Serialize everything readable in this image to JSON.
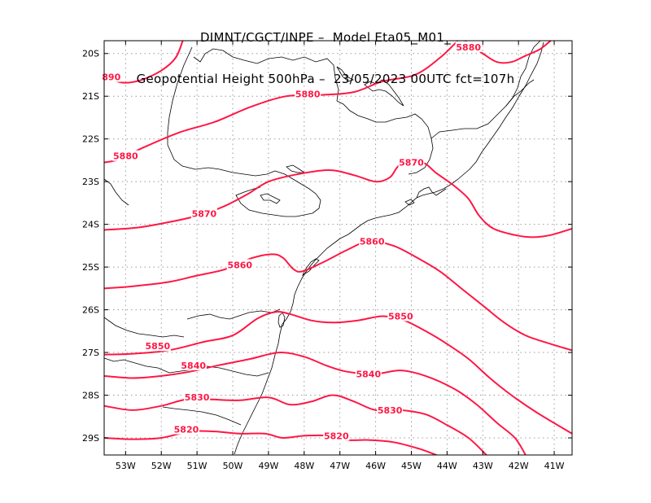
{
  "title": {
    "line1": "DIMNT/CGCT/INPE –  Model Eta05_M01_",
    "line2": "Geopotential Height 500hPa –  23/05/2023 00UTC fct=107h"
  },
  "map": {
    "lon_range": [
      -53.6,
      -40.5
    ],
    "lat_range": [
      -29.4,
      -19.7
    ],
    "contour_color": "#ff1744",
    "coast_color": "#000000",
    "grid_color": "#9a9a9a",
    "lon_ticks": [
      {
        "value": -53,
        "label": "53W"
      },
      {
        "value": -52,
        "label": "52W"
      },
      {
        "value": -51,
        "label": "51W"
      },
      {
        "value": -50,
        "label": "50W"
      },
      {
        "value": -49,
        "label": "49W"
      },
      {
        "value": -48,
        "label": "48W"
      },
      {
        "value": -47,
        "label": "47W"
      },
      {
        "value": -46,
        "label": "46W"
      },
      {
        "value": -45,
        "label": "45W"
      },
      {
        "value": -44,
        "label": "44W"
      },
      {
        "value": -43,
        "label": "43W"
      },
      {
        "value": -42,
        "label": "42W"
      },
      {
        "value": -41,
        "label": "41W"
      }
    ],
    "lat_ticks": [
      {
        "value": -20,
        "label": "20S"
      },
      {
        "value": -21,
        "label": "21S"
      },
      {
        "value": -22,
        "label": "22S"
      },
      {
        "value": -23,
        "label": "23S"
      },
      {
        "value": -24,
        "label": "24S"
      },
      {
        "value": -25,
        "label": "25S"
      },
      {
        "value": -26,
        "label": "26S"
      },
      {
        "value": -27,
        "label": "27S"
      },
      {
        "value": -28,
        "label": "28S"
      },
      {
        "value": -29,
        "label": "29S"
      }
    ],
    "contours": [
      {
        "level": 5890,
        "points": [
          [
            -53.6,
            -20.53
          ],
          [
            -53.1,
            -20.68
          ],
          [
            -52.6,
            -20.63
          ],
          [
            -52.0,
            -20.4
          ],
          [
            -51.6,
            -20.1
          ],
          [
            -51.4,
            -19.7
          ]
        ],
        "labels": [
          {
            "text": "890",
            "lon": -53.4,
            "lat": -20.55
          }
        ]
      },
      {
        "level": 5880,
        "points": [
          [
            -43.5,
            -19.7
          ],
          [
            -43.0,
            -20.0
          ],
          [
            -42.6,
            -20.2
          ],
          [
            -42.2,
            -20.2
          ],
          [
            -41.8,
            -20.05
          ],
          [
            -41.4,
            -19.9
          ],
          [
            -41.1,
            -19.7
          ]
        ],
        "labels": [
          {
            "text": "5880",
            "lon": -43.4,
            "lat": -19.85
          }
        ]
      },
      {
        "level": 5880,
        "points": [
          [
            -53.6,
            -22.55
          ],
          [
            -53.2,
            -22.48
          ],
          [
            -52.5,
            -22.2
          ],
          [
            -51.5,
            -21.85
          ],
          [
            -50.5,
            -21.6
          ],
          [
            -49.5,
            -21.25
          ],
          [
            -48.5,
            -21.0
          ],
          [
            -47.5,
            -20.97
          ],
          [
            -46.6,
            -20.9
          ],
          [
            -45.8,
            -20.65
          ],
          [
            -44.9,
            -20.5
          ],
          [
            -44.2,
            -20.1
          ],
          [
            -43.7,
            -19.7
          ]
        ],
        "labels": [
          {
            "text": "5880",
            "lon": -53.0,
            "lat": -22.4
          },
          {
            "text": "5880",
            "lon": -47.9,
            "lat": -20.95
          }
        ]
      },
      {
        "level": 5870,
        "points": [
          [
            -53.6,
            -24.13
          ],
          [
            -52.7,
            -24.08
          ],
          [
            -51.8,
            -23.95
          ],
          [
            -51.0,
            -23.8
          ],
          [
            -50.3,
            -23.6
          ],
          [
            -49.6,
            -23.3
          ],
          [
            -49.0,
            -23.0
          ],
          [
            -48.2,
            -22.83
          ],
          [
            -47.3,
            -22.73
          ],
          [
            -46.6,
            -22.85
          ],
          [
            -46.0,
            -23.0
          ],
          [
            -45.6,
            -22.9
          ],
          [
            -45.3,
            -22.6
          ],
          [
            -44.7,
            -22.55
          ],
          [
            -44.3,
            -22.8
          ],
          [
            -43.8,
            -23.1
          ],
          [
            -43.4,
            -23.4
          ],
          [
            -43.1,
            -23.8
          ],
          [
            -42.7,
            -24.1
          ],
          [
            -42.1,
            -24.25
          ],
          [
            -41.6,
            -24.3
          ],
          [
            -41.1,
            -24.25
          ],
          [
            -40.5,
            -24.1
          ]
        ],
        "labels": [
          {
            "text": "5870",
            "lon": -50.8,
            "lat": -23.75
          },
          {
            "text": "5870",
            "lon": -45.0,
            "lat": -22.55
          }
        ]
      },
      {
        "level": 5860,
        "points": [
          [
            -53.6,
            -25.5
          ],
          [
            -52.8,
            -25.45
          ],
          [
            -51.8,
            -25.35
          ],
          [
            -51.0,
            -25.2
          ],
          [
            -50.2,
            -25.05
          ],
          [
            -49.5,
            -24.8
          ],
          [
            -48.9,
            -24.7
          ],
          [
            -48.6,
            -24.78
          ],
          [
            -48.3,
            -25.05
          ],
          [
            -48.05,
            -25.1
          ],
          [
            -47.5,
            -24.9
          ],
          [
            -46.8,
            -24.6
          ],
          [
            -46.2,
            -24.4
          ],
          [
            -45.5,
            -24.5
          ],
          [
            -44.8,
            -24.8
          ],
          [
            -44.2,
            -25.1
          ],
          [
            -43.6,
            -25.5
          ],
          [
            -43.0,
            -25.9
          ],
          [
            -42.4,
            -26.3
          ],
          [
            -41.8,
            -26.6
          ],
          [
            -41.1,
            -26.8
          ],
          [
            -40.5,
            -26.95
          ]
        ],
        "labels": [
          {
            "text": "5860",
            "lon": -49.8,
            "lat": -24.95
          },
          {
            "text": "5860",
            "lon": -46.1,
            "lat": -24.4
          }
        ]
      },
      {
        "level": 5850,
        "points": [
          [
            -53.6,
            -27.05
          ],
          [
            -52.8,
            -27.03
          ],
          [
            -51.8,
            -26.95
          ],
          [
            -50.8,
            -26.75
          ],
          [
            -50.0,
            -26.6
          ],
          [
            -49.3,
            -26.2
          ],
          [
            -48.8,
            -26.05
          ],
          [
            -48.4,
            -26.1
          ],
          [
            -47.8,
            -26.25
          ],
          [
            -47.2,
            -26.3
          ],
          [
            -46.5,
            -26.25
          ],
          [
            -45.8,
            -26.15
          ],
          [
            -45.2,
            -26.25
          ],
          [
            -44.6,
            -26.5
          ],
          [
            -44.0,
            -26.8
          ],
          [
            -43.4,
            -27.15
          ],
          [
            -42.8,
            -27.6
          ],
          [
            -42.2,
            -28.0
          ],
          [
            -41.5,
            -28.4
          ],
          [
            -40.5,
            -28.9
          ]
        ],
        "labels": [
          {
            "text": "5850",
            "lon": -52.1,
            "lat": -26.85
          },
          {
            "text": "5850",
            "lon": -45.3,
            "lat": -26.15
          }
        ]
      },
      {
        "level": 5840,
        "points": [
          [
            -53.6,
            -27.55
          ],
          [
            -52.8,
            -27.6
          ],
          [
            -52.0,
            -27.55
          ],
          [
            -51.2,
            -27.45
          ],
          [
            -50.4,
            -27.3
          ],
          [
            -49.5,
            -27.15
          ],
          [
            -48.7,
            -27.0
          ],
          [
            -48.0,
            -27.1
          ],
          [
            -47.4,
            -27.3
          ],
          [
            -46.8,
            -27.45
          ],
          [
            -46.0,
            -27.5
          ],
          [
            -45.3,
            -27.42
          ],
          [
            -44.6,
            -27.55
          ],
          [
            -43.8,
            -27.85
          ],
          [
            -43.2,
            -28.2
          ],
          [
            -42.6,
            -28.65
          ],
          [
            -42.1,
            -29.0
          ],
          [
            -41.8,
            -29.4
          ]
        ],
        "labels": [
          {
            "text": "5840",
            "lon": -51.1,
            "lat": -27.3
          },
          {
            "text": "5840",
            "lon": -46.2,
            "lat": -27.5
          }
        ]
      },
      {
        "level": 5830,
        "points": [
          [
            -53.6,
            -28.25
          ],
          [
            -52.8,
            -28.35
          ],
          [
            -52.0,
            -28.25
          ],
          [
            -51.3,
            -28.1
          ],
          [
            -50.6,
            -28.1
          ],
          [
            -49.8,
            -28.12
          ],
          [
            -49.0,
            -28.05
          ],
          [
            -48.4,
            -28.22
          ],
          [
            -47.8,
            -28.15
          ],
          [
            -47.2,
            -28.0
          ],
          [
            -46.6,
            -28.15
          ],
          [
            -46.0,
            -28.35
          ],
          [
            -45.3,
            -28.35
          ],
          [
            -44.6,
            -28.45
          ],
          [
            -44.0,
            -28.7
          ],
          [
            -43.4,
            -29.0
          ],
          [
            -42.9,
            -29.4
          ]
        ],
        "labels": [
          {
            "text": "5830",
            "lon": -51.0,
            "lat": -28.05
          },
          {
            "text": "5830",
            "lon": -45.6,
            "lat": -28.35
          }
        ]
      },
      {
        "level": 5820,
        "points": [
          [
            -53.6,
            -29.0
          ],
          [
            -52.8,
            -29.03
          ],
          [
            -52.0,
            -29.0
          ],
          [
            -51.2,
            -28.85
          ],
          [
            -50.5,
            -28.85
          ],
          [
            -49.8,
            -28.9
          ],
          [
            -49.1,
            -28.9
          ],
          [
            -48.6,
            -29.0
          ],
          [
            -48.0,
            -28.95
          ],
          [
            -47.3,
            -28.95
          ],
          [
            -46.8,
            -29.05
          ],
          [
            -46.2,
            -29.05
          ],
          [
            -45.5,
            -29.1
          ],
          [
            -44.8,
            -29.25
          ],
          [
            -44.3,
            -29.4
          ]
        ],
        "labels": [
          {
            "text": "5820",
            "lon": -51.3,
            "lat": -28.8
          },
          {
            "text": "5820",
            "lon": -47.1,
            "lat": -28.95
          }
        ]
      }
    ]
  }
}
